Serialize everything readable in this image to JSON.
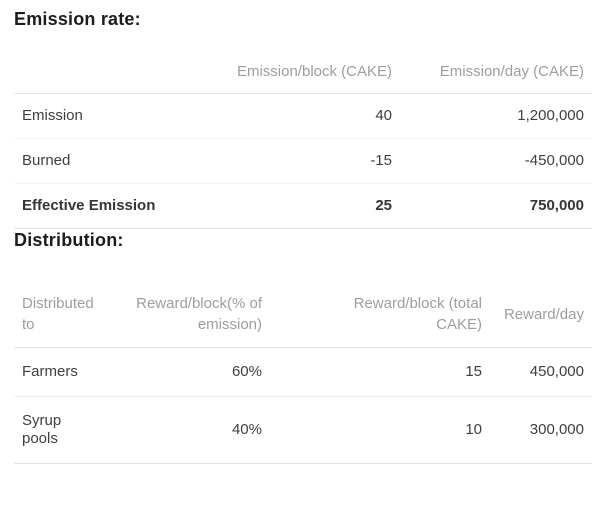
{
  "colors": {
    "background": "#ffffff",
    "heading_text": "#1d1d1d",
    "body_text": "#3f3f3f",
    "column_header_text": "#9e9e9e",
    "border_strong": "#e2e2e2",
    "border_light": "#f4f4f4"
  },
  "sections": [
    {
      "heading": "Emission rate:",
      "table": {
        "columns": [
          {
            "label": "",
            "align": "left"
          },
          {
            "label": "Emission/block (CAKE)",
            "align": "right"
          },
          {
            "label": "Emission/day (CAKE)",
            "align": "right"
          }
        ],
        "rows": [
          {
            "bold": false,
            "cells": [
              "Emission",
              "40",
              "1,200,000"
            ]
          },
          {
            "bold": false,
            "cells": [
              "Burned",
              "-15",
              "-450,000"
            ]
          },
          {
            "bold": true,
            "cells": [
              "Effective Emission",
              "25",
              "750,000"
            ]
          }
        ]
      }
    },
    {
      "heading": "Distribution:",
      "table": {
        "columns": [
          {
            "label": "Distributed to",
            "align": "left"
          },
          {
            "label": "Reward/block(% of emission)",
            "align": "right"
          },
          {
            "label": "Reward/block (total CAKE)",
            "align": "right"
          },
          {
            "label": "Reward/day",
            "align": "right"
          }
        ],
        "rows": [
          {
            "bold": false,
            "cells": [
              "Farmers",
              "60%",
              "15",
              "450,000"
            ]
          },
          {
            "bold": false,
            "cells": [
              "Syrup pools",
              "40%",
              "10",
              "300,000"
            ]
          }
        ]
      }
    }
  ]
}
